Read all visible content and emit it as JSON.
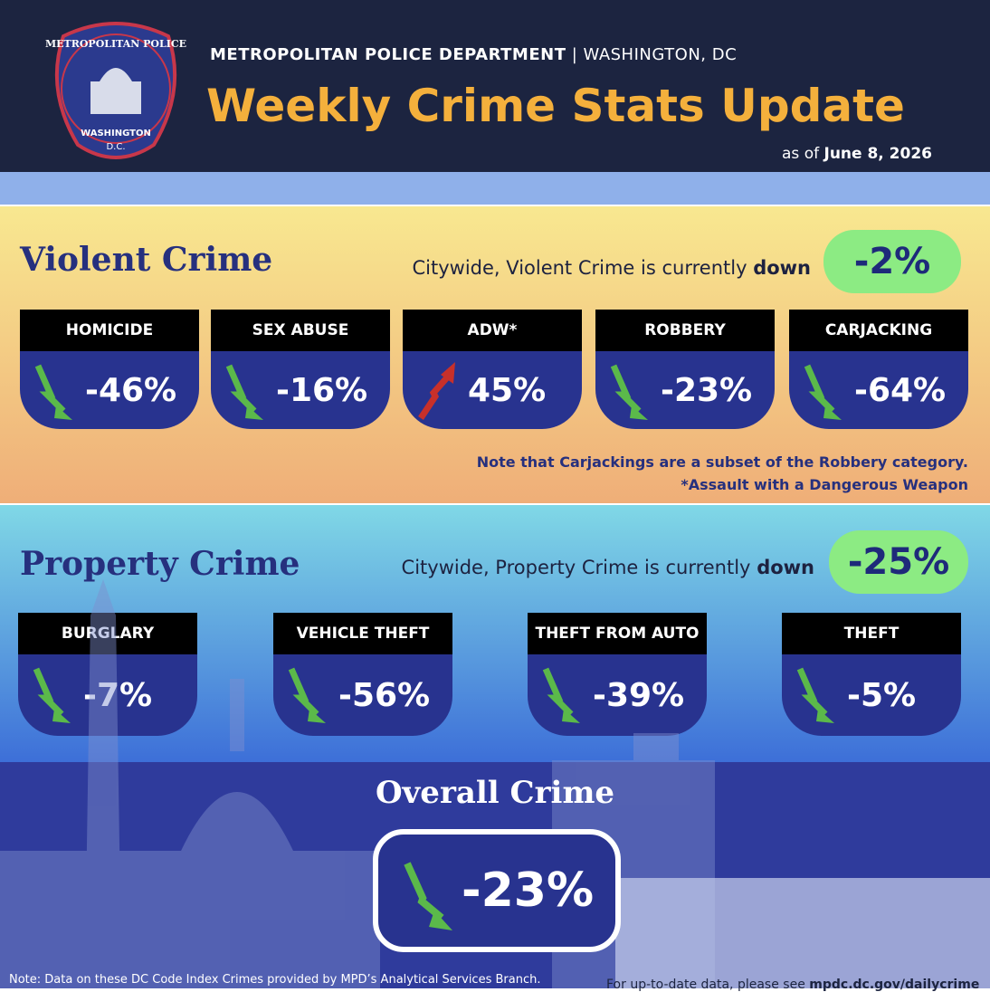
{
  "badge": {
    "top": "METROPOLITAN POLICE",
    "bottom": "WASHINGTON",
    "city": "D.C."
  },
  "header": {
    "org": "METROPOLITAN POLICE DEPARTMENT",
    "location": "WASHINGTON, DC",
    "title": "Weekly Crime Stats Update",
    "date_prefix": "as of",
    "date": "June 8, 2026"
  },
  "violent": {
    "title": "Violent Crime",
    "summary_prefix": "Citywide, Violent Crime is currently",
    "summary_direction": "down",
    "change": "-2%",
    "items": [
      {
        "label": "HOMICIDE",
        "change": "-46%"
      },
      {
        "label": "SEX ABUSE",
        "change": "-16%"
      },
      {
        "label": "ADW*",
        "change": "45%"
      },
      {
        "label": "ROBBERY",
        "change": "-23%"
      },
      {
        "label": "CARJACKING",
        "change": "-64%"
      }
    ],
    "notes": [
      "Note that Carjackings are a subset of the Robbery category.",
      "*Assault with a Dangerous Weapon"
    ]
  },
  "property": {
    "title": "Property Crime",
    "summary_prefix": "Citywide, Property Crime is currently",
    "summary_direction": "down",
    "change": "-25%",
    "items": [
      {
        "label": "BURGLARY",
        "change": "-7%"
      },
      {
        "label": "VEHICLE THEFT",
        "change": "-56%"
      },
      {
        "label": "THEFT FROM AUTO",
        "change": "-39%"
      },
      {
        "label": "THEFT",
        "change": "-5%"
      }
    ]
  },
  "overall": {
    "title": "Overall Crime",
    "change": "-23%"
  },
  "footer": {
    "note": "Note: Data on these DC Code Index Crimes provided by MPD’s Analytical Services Branch.",
    "link_prefix": "For up-to-date data, please see",
    "link": "mpdc.dc.gov/dailycrime"
  }
}
